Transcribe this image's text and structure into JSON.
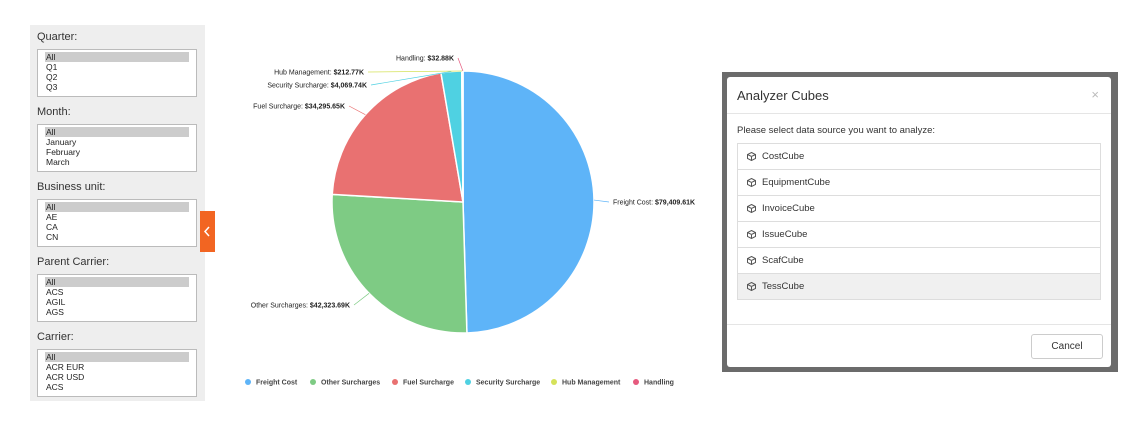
{
  "filters": [
    {
      "label": "Quarter:",
      "options": [
        "All",
        "Q1",
        "Q2",
        "Q3"
      ]
    },
    {
      "label": "Month:",
      "options": [
        "All",
        "January",
        "February",
        "March"
      ]
    },
    {
      "label": "Business unit:",
      "options": [
        "All",
        "AE",
        "CA",
        "CN"
      ]
    },
    {
      "label": "Parent Carrier:",
      "options": [
        "All",
        "ACS",
        "AGIL",
        "AGS"
      ]
    },
    {
      "label": "Carrier:",
      "options": [
        "All",
        "ACR EUR",
        "ACR USD",
        "ACS"
      ]
    }
  ],
  "chart_data": {
    "type": "pie",
    "categories": [
      "Freight Cost",
      "Other Surcharges",
      "Fuel Surcharge",
      "Security Surcharge",
      "Hub Management",
      "Handling"
    ],
    "values": [
      79409.61,
      42323.69,
      34295.65,
      4069.74,
      212.77,
      32.88
    ],
    "value_labels": [
      "$79,409.61K",
      "$42,323.69K",
      "$34,295.65K",
      "$4,069.74K",
      "$212.77K",
      "$32.88K"
    ],
    "colors": [
      "#5eb4f8",
      "#7ecb84",
      "#e97171",
      "#4fd1e2",
      "#d5e25a",
      "#e65a7e"
    ],
    "legend": "bottom"
  },
  "dialog": {
    "title": "Analyzer Cubes",
    "close": "×",
    "prompt": "Please select data source you want to analyze:",
    "items": [
      "CostCube",
      "EquipmentCube",
      "InvoiceCube",
      "IssueCube",
      "ScafCube",
      "TessCube"
    ],
    "cancel": "Cancel"
  }
}
